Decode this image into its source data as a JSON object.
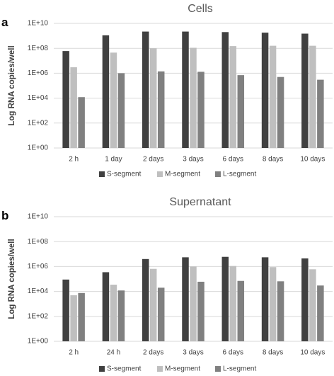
{
  "chart_data": [
    {
      "type": "bar",
      "panel_label": "a",
      "title": "Cells",
      "ylabel": "Log RNA copies/well",
      "yscale": "log",
      "ylim": [
        1,
        10000000000
      ],
      "yticks": [
        {
          "value": 1,
          "label": "1E+00"
        },
        {
          "value": 100,
          "label": "1E+02"
        },
        {
          "value": 10000,
          "label": "1E+04"
        },
        {
          "value": 1000000,
          "label": "1E+06"
        },
        {
          "value": 100000000,
          "label": "1E+08"
        },
        {
          "value": 10000000000,
          "label": "1E+10"
        }
      ],
      "grid": true,
      "legend_position": "bottom",
      "categories": [
        "2 h",
        "1 day",
        "2 days",
        "3 days",
        "6 days",
        "8 days",
        "10 days"
      ],
      "series": [
        {
          "name": "S-segment",
          "color": "#404040",
          "values": [
            60000000,
            1100000000,
            2200000000,
            2200000000,
            2000000000,
            1800000000,
            1500000000
          ]
        },
        {
          "name": "M-segment",
          "color": "#bfbfbf",
          "values": [
            3000000,
            45000000,
            100000000,
            110000000,
            150000000,
            160000000,
            160000000
          ]
        },
        {
          "name": "L-segment",
          "color": "#808080",
          "values": [
            12000,
            1000000,
            1400000,
            1300000,
            700000,
            500000,
            300000
          ]
        }
      ]
    },
    {
      "type": "bar",
      "panel_label": "b",
      "title": "Supernatant",
      "ylabel": "Log RNA copies/well",
      "yscale": "log",
      "ylim": [
        1,
        10000000000
      ],
      "yticks": [
        {
          "value": 1,
          "label": "1E+00"
        },
        {
          "value": 100,
          "label": "1E+02"
        },
        {
          "value": 10000,
          "label": "1E+04"
        },
        {
          "value": 1000000,
          "label": "1E+06"
        },
        {
          "value": 100000000,
          "label": "1E+08"
        },
        {
          "value": 10000000000,
          "label": "1E+10"
        }
      ],
      "grid": true,
      "legend_position": "bottom",
      "categories": [
        "2 h",
        "24 h",
        "2 days",
        "3 days",
        "6 days",
        "8 days",
        "10 days"
      ],
      "series": [
        {
          "name": "S-segment",
          "color": "#404040",
          "values": [
            90000,
            350000,
            4000000,
            5500000,
            6000000,
            5500000,
            4500000
          ]
        },
        {
          "name": "M-segment",
          "color": "#bfbfbf",
          "values": [
            5000,
            35000,
            650000,
            1000000,
            1100000,
            900000,
            600000
          ]
        },
        {
          "name": "L-segment",
          "color": "#808080",
          "values": [
            7500,
            12000,
            20000,
            60000,
            70000,
            65000,
            30000
          ]
        }
      ]
    }
  ]
}
